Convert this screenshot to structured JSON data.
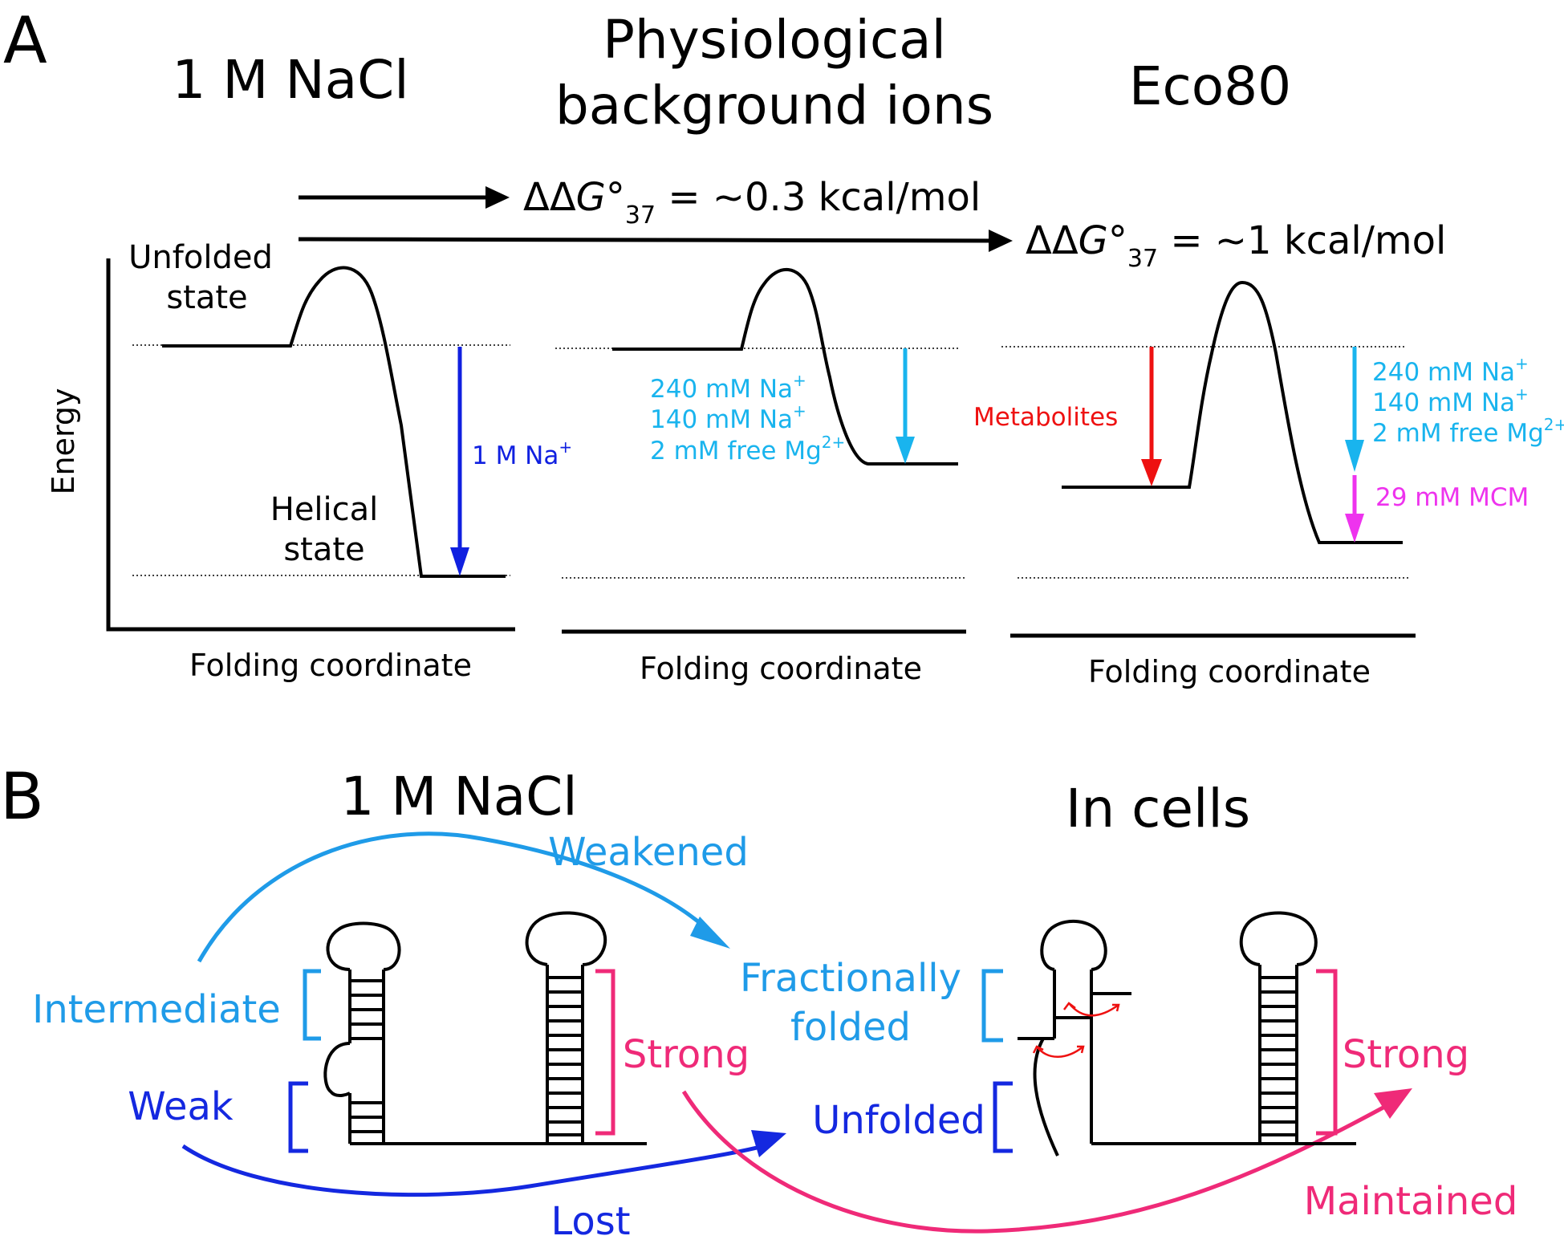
{
  "panel_a": {
    "label": "A",
    "titles": {
      "nacl": "1 M NaCl",
      "physio_line1": "Physiological",
      "physio_line2": "background ions",
      "eco80": "Eco80"
    },
    "ddg_1": "ΔΔG°37 = ~0.3 kcal/mol",
    "ddg_2": "ΔΔG°37 = ~1 kcal/mol",
    "ddg_1_parts": {
      "pre": "ΔΔ",
      "g": "G",
      "deg": "°",
      "sub": "37",
      "post": " = ~0.3 kcal/mol"
    },
    "ddg_2_parts": {
      "pre": "ΔΔ",
      "g": "G",
      "deg": "°",
      "sub": "37",
      "post": " = ~1 kcal/mol"
    },
    "y_axis": "Energy",
    "x_axis": "Folding coordinate",
    "unfolded_state": [
      "Unfolded",
      "state"
    ],
    "helical_state": [
      "Helical",
      "state"
    ],
    "nacl_arrow": {
      "text": "1 M Na",
      "sup": "+"
    },
    "physio_ions": [
      {
        "text": "240 mM Na",
        "sup": "+"
      },
      {
        "text": "140 mM Na",
        "sup": "+"
      },
      {
        "text": "2 mM free Mg",
        "sup": "2+"
      }
    ],
    "metabolites": "Metabolites",
    "mcm": "29 mM MCM",
    "colors": {
      "nacl": "#1020e0",
      "ions": "#19b4ee",
      "metabolites": "#ee1111",
      "mcm": "#ee33ee"
    }
  },
  "panel_b": {
    "label": "B",
    "title_left": "1 M NaCl",
    "title_right": "In cells",
    "weakened": "Weakened",
    "intermediate": "Intermediate",
    "weak": "Weak",
    "strong_left": "Strong",
    "fractionally": "Fractionally",
    "folded": "folded",
    "unfolded": "Unfolded",
    "strong_right": "Strong",
    "lost": "Lost",
    "maintained": "Maintained",
    "colors": {
      "light_blue": "#1f9be8",
      "dark_blue": "#1428e0",
      "pink": "#ef2a78"
    }
  }
}
